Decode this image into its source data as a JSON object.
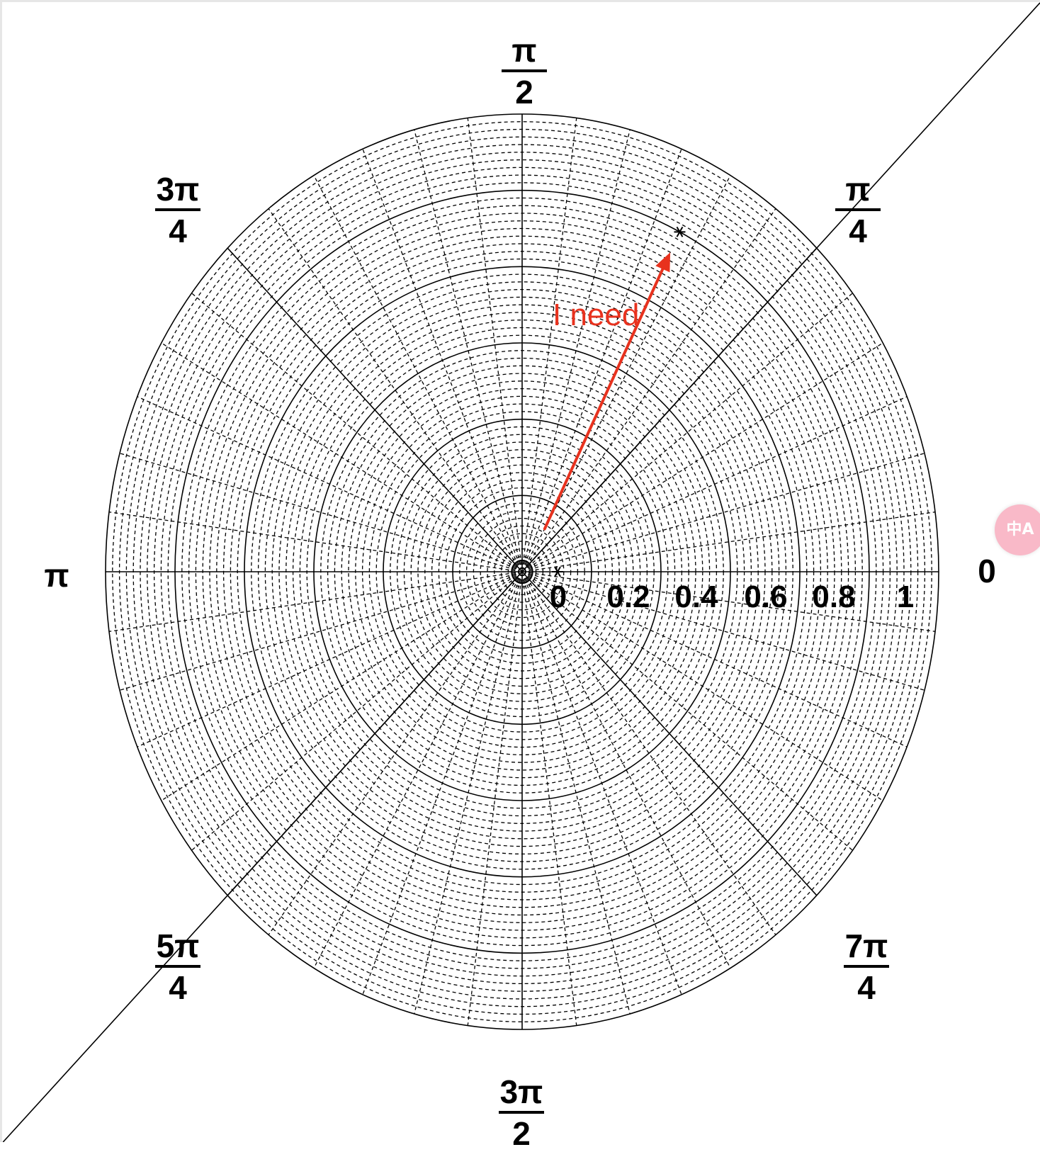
{
  "chart_data": {
    "type": "scatter",
    "coordinate_system": "polar",
    "angular_tick_labels": [
      {
        "angle": "0",
        "num": "0",
        "den": ""
      },
      {
        "angle": "pi/4",
        "num": "π",
        "den": "4"
      },
      {
        "angle": "pi/2",
        "num": "π",
        "den": "2"
      },
      {
        "angle": "3pi/4",
        "num": "3π",
        "den": "4"
      },
      {
        "angle": "pi",
        "num": "π",
        "den": ""
      },
      {
        "angle": "5pi/4",
        "num": "5π",
        "den": "4"
      },
      {
        "angle": "3pi/2",
        "num": "3π",
        "den": "2"
      },
      {
        "angle": "7pi/4",
        "num": "7π",
        "den": "4"
      }
    ],
    "radial_tick_labels": [
      "0",
      "0.2",
      "0.4",
      "0.6",
      "0.8",
      "1"
    ],
    "rlim": [
      0,
      1.2
    ],
    "points": [
      {
        "r": 0.0,
        "theta_deg": 0
      },
      {
        "r": 1.0,
        "theta_deg": 63
      }
    ],
    "diagonal_line_angle_deg": 45,
    "annotation": {
      "text": "I need",
      "color": "#e8321e",
      "arrow_from": {
        "r": 0.13,
        "theta_deg": 60
      },
      "arrow_to": {
        "r": 0.94,
        "theta_deg": 63
      }
    },
    "grid": true,
    "grid_style": "dashed"
  },
  "widget": {
    "icon": "translate-icon",
    "glyph_top": "中",
    "glyph_bottom": "A"
  }
}
